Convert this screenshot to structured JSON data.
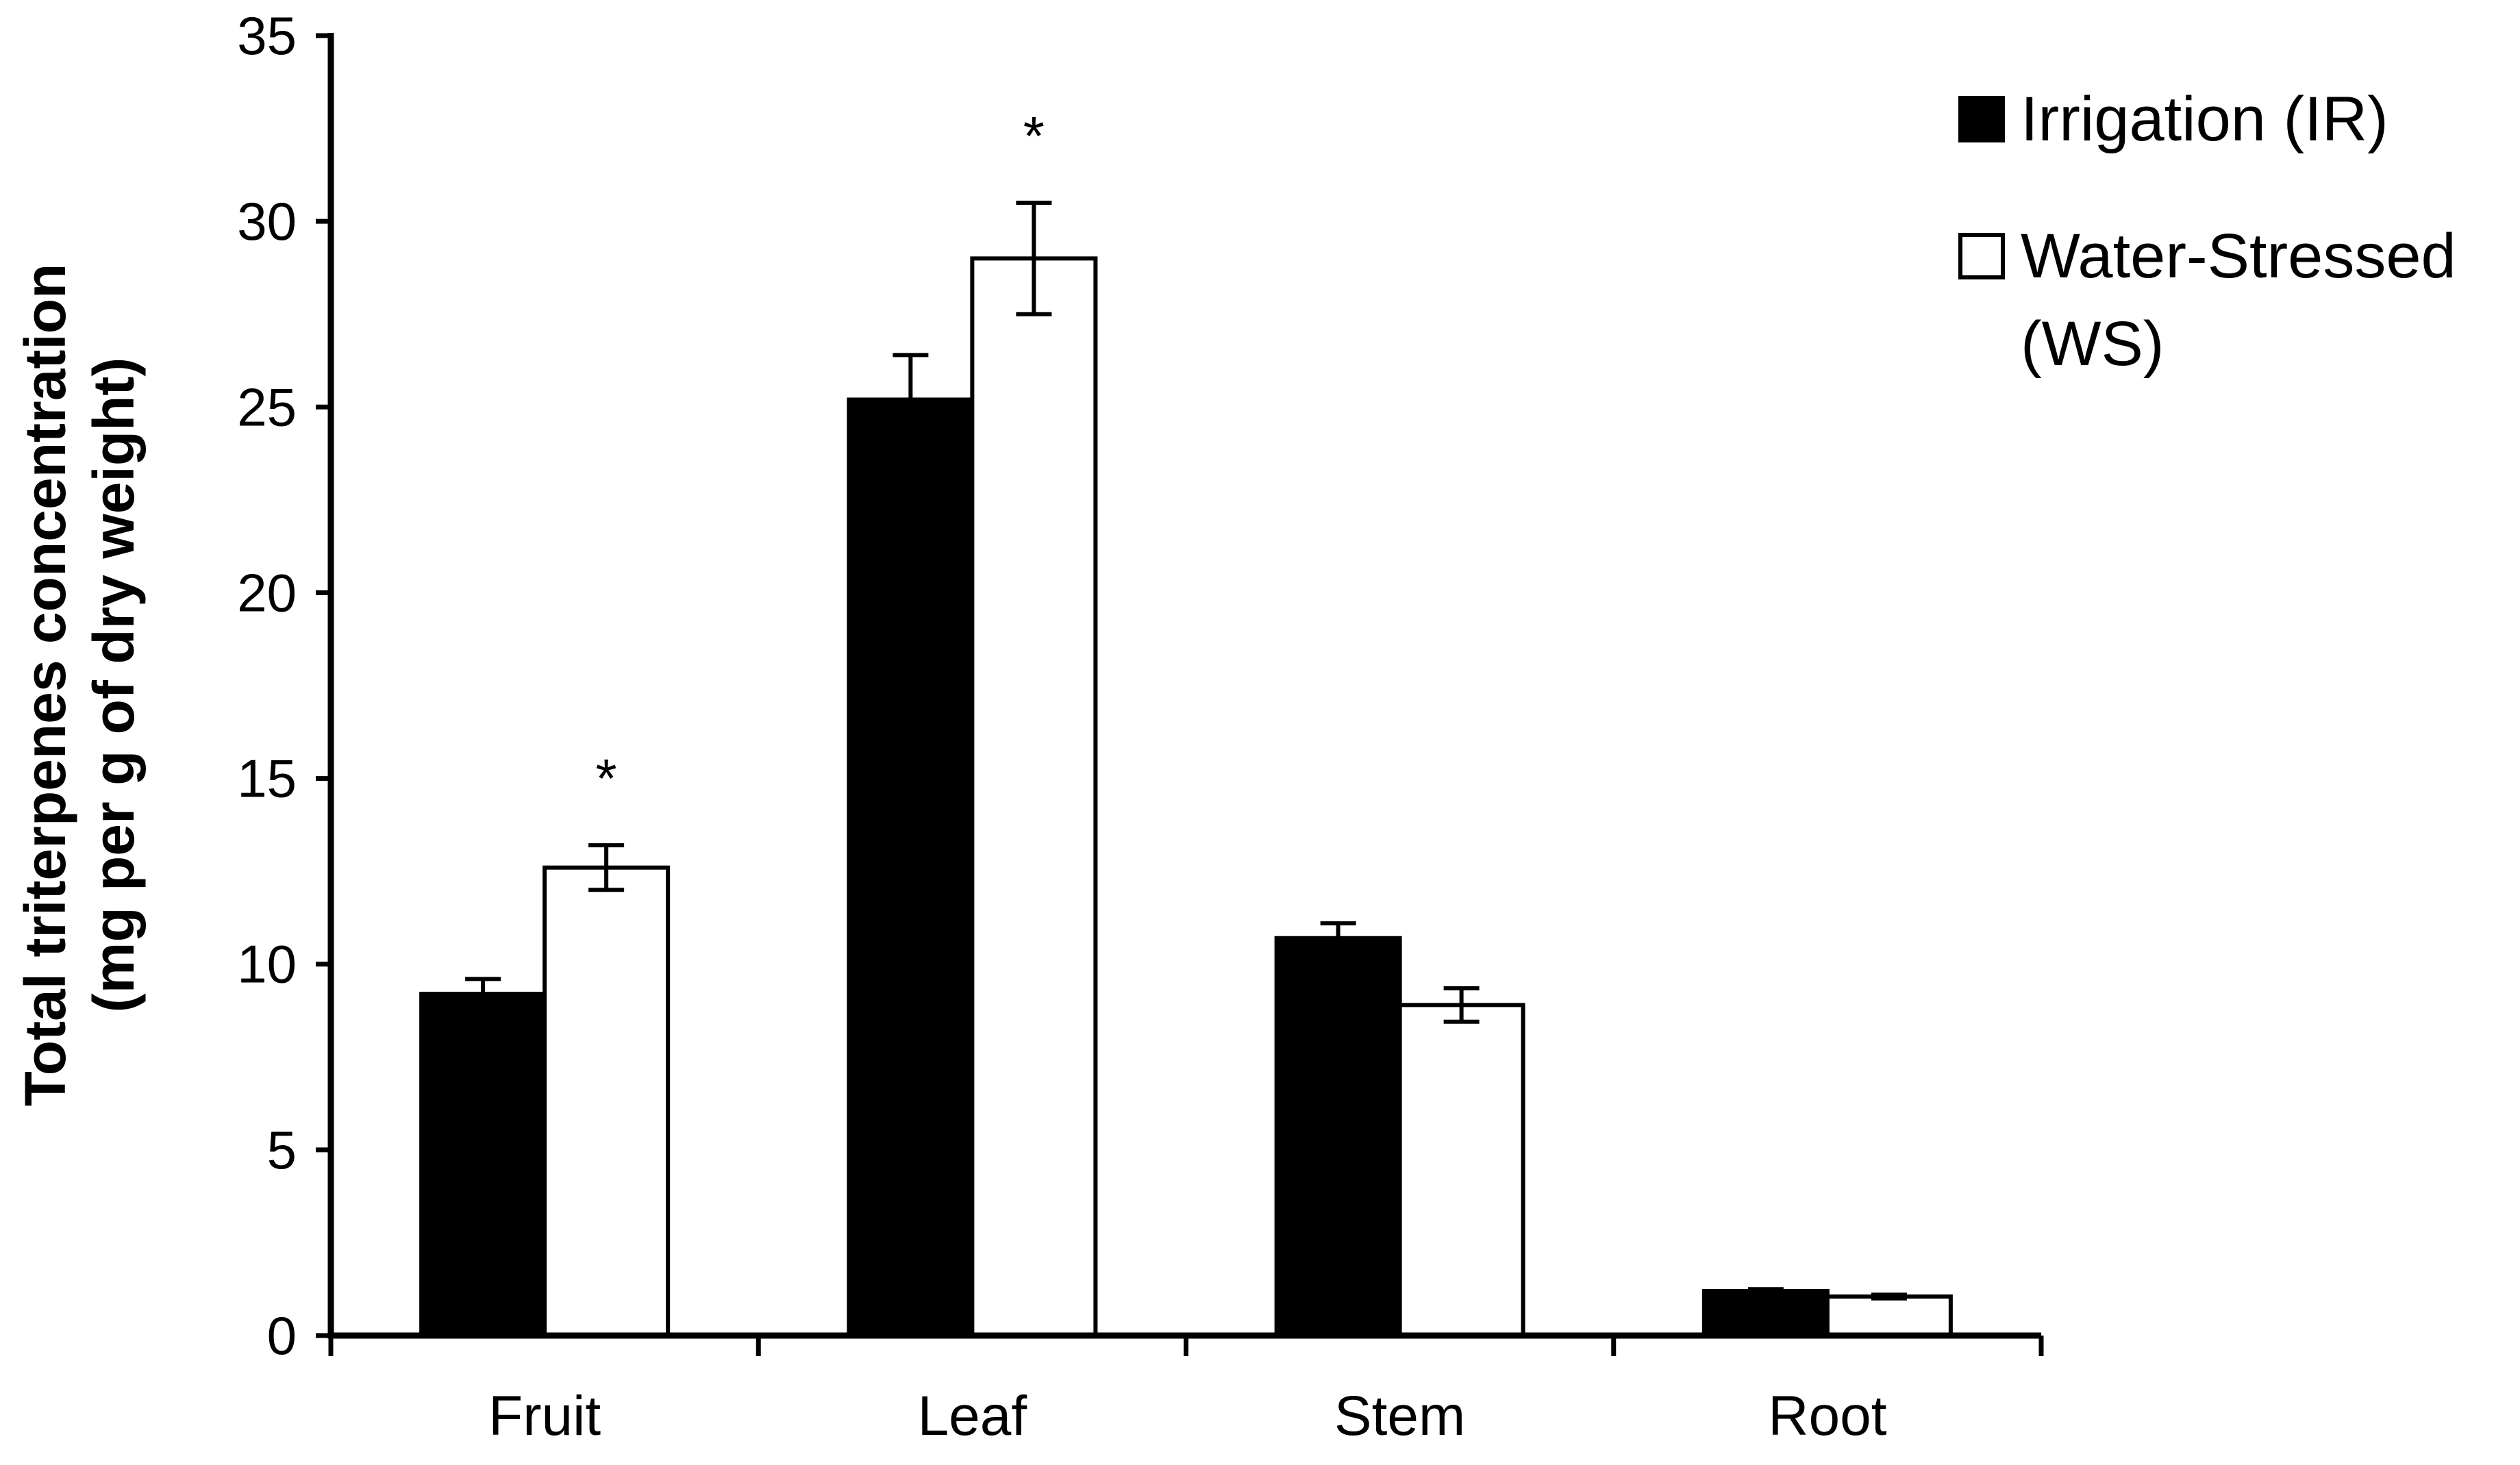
{
  "chart_data": {
    "type": "bar",
    "title": "",
    "xlabel": "",
    "ylabel": [
      "Total triterpenes concentration",
      "(mg per g of dry weight)"
    ],
    "ylim": [
      0,
      35
    ],
    "yticks": [
      0,
      5,
      10,
      15,
      20,
      25,
      30,
      35
    ],
    "categories": [
      "Fruit",
      "Leaf",
      "Stem",
      "Root"
    ],
    "series": [
      {
        "name": "Irrigation (IR)",
        "fill": "#000000",
        "values": [
          9.2,
          25.2,
          10.7,
          1.2
        ],
        "errors": [
          0.4,
          1.2,
          0.4,
          0.05
        ]
      },
      {
        "name": "Water-Stressed (WS)",
        "name_lines": [
          "Water-Stressed",
          "(WS)"
        ],
        "fill": "#ffffff",
        "values": [
          12.6,
          29.0,
          8.9,
          1.05
        ],
        "errors": [
          0.6,
          1.5,
          0.45,
          0.05
        ]
      }
    ],
    "annotations": [
      {
        "category": "Fruit",
        "series": 1,
        "text": "*"
      },
      {
        "category": "Leaf",
        "series": 1,
        "text": "*"
      }
    ],
    "grid": false,
    "legend_position": "top-right"
  }
}
